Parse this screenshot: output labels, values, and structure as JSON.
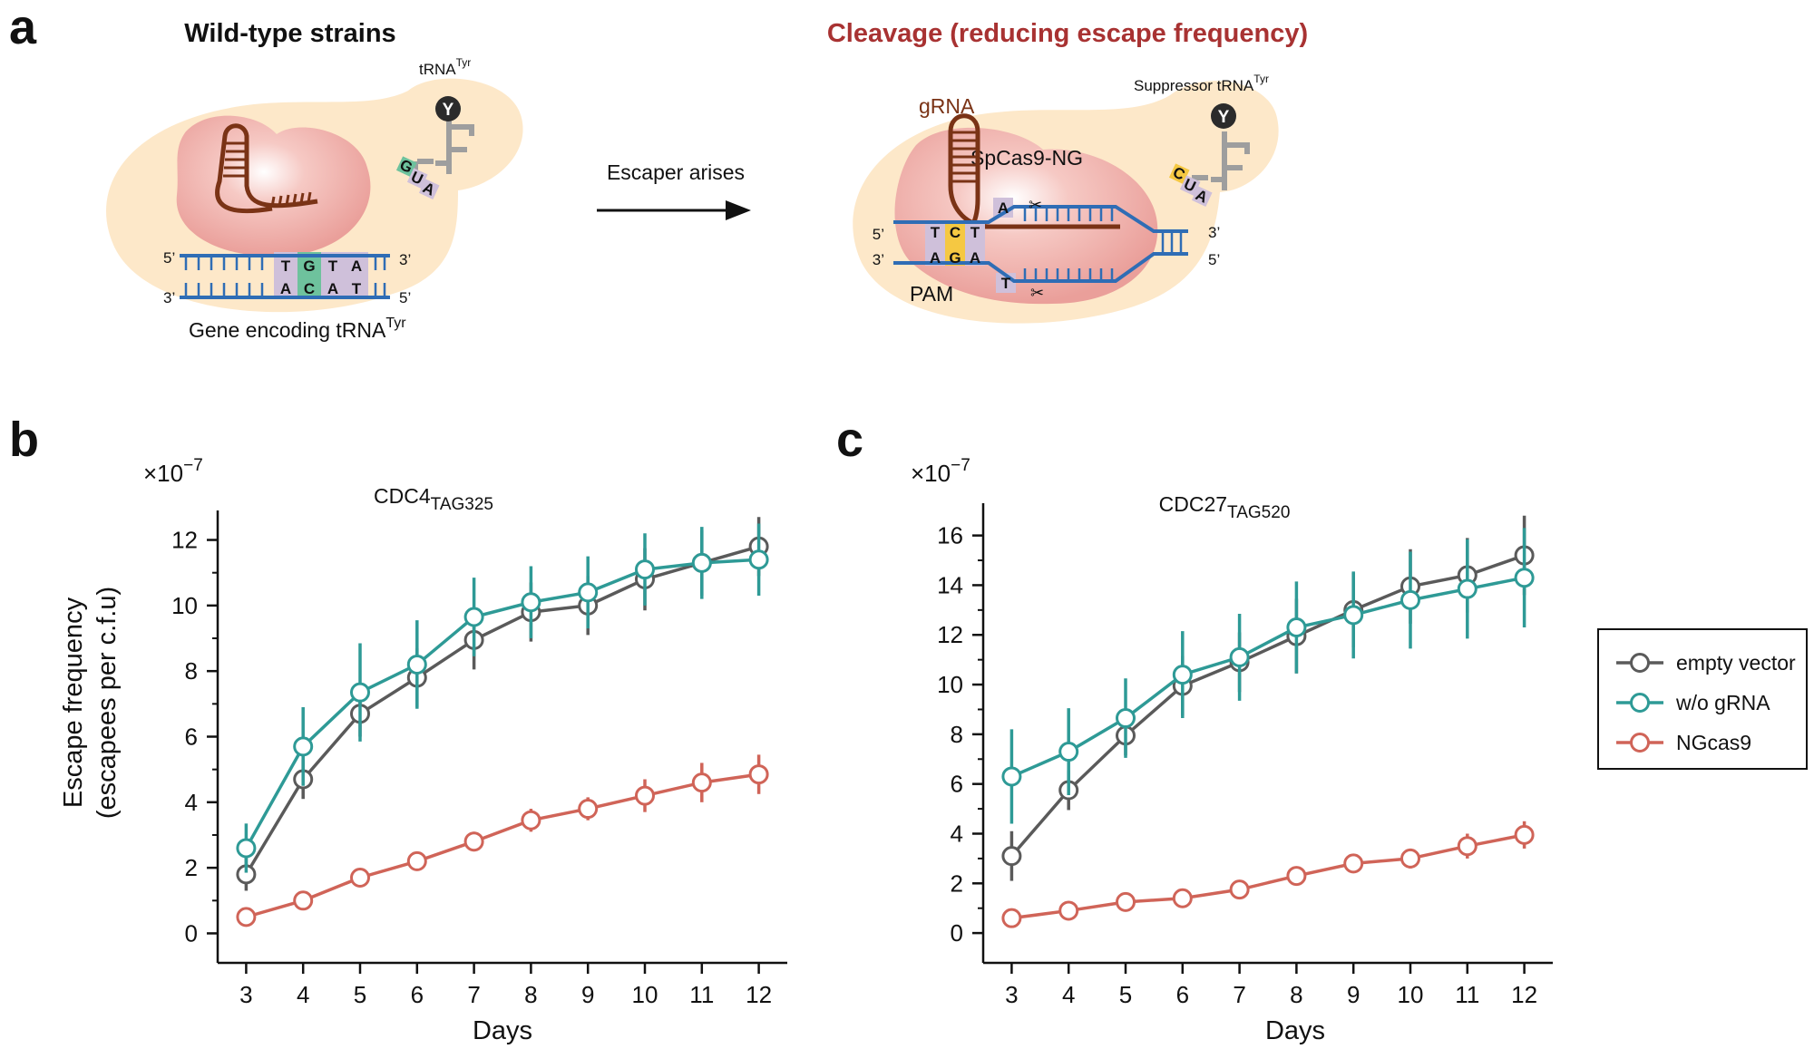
{
  "panels": {
    "a": "a",
    "b": "b",
    "c": "c"
  },
  "diagram": {
    "left_title": "Wild-type strains",
    "right_title": "Cleavage (reducing escape frequency)",
    "right_title_color": "#a83232",
    "arrow_label": "Escaper arises",
    "trna_main": "tRNA",
    "trna_sup": "Tyr",
    "suppressor_main": "Suppressor tRNA",
    "suppressor_sup": "Tyr",
    "gene_main": "Gene encoding tRNA",
    "gene_sup": "Tyr",
    "grna": "gRNA",
    "spcas9": "SpCas9-NG",
    "pam": "PAM",
    "amino_acid": "Y",
    "wt_anticodon": [
      "G",
      "U",
      "A"
    ],
    "sup_anticodon": [
      "C",
      "U",
      "A"
    ],
    "wt_top_strand": [
      "T",
      "G",
      "T",
      "A"
    ],
    "wt_bottom_strand": [
      "A",
      "C",
      "A",
      "T"
    ],
    "pam_top": [
      "T",
      "C",
      "T"
    ],
    "pam_bottom": [
      "A",
      "G",
      "A"
    ],
    "cut_top_base": "A",
    "cut_bottom_base": "T",
    "end_5": "5’",
    "end_3": "3’"
  },
  "chart_data": [
    {
      "type": "line",
      "title": "CDC4",
      "title_subscript": "TAG325",
      "xlabel": "Days",
      "ylabel": "Escape frequency",
      "ylabel2": "(escapees per c.f.u)",
      "multiplier_text": "×10",
      "multiplier_exp": "−7",
      "x": [
        3,
        4,
        5,
        6,
        7,
        8,
        9,
        10,
        11,
        12
      ],
      "xlim": [
        2.5,
        12.5
      ],
      "ylim": [
        -0.9,
        12.9
      ],
      "yticks": [
        0,
        2,
        4,
        6,
        8,
        10,
        12
      ],
      "series": [
        {
          "name": "empty vector",
          "color": "#5a5a5a",
          "values": [
            1.8,
            4.7,
            6.7,
            7.8,
            8.95,
            9.8,
            10.0,
            10.8,
            11.3,
            11.8
          ],
          "errors": [
            0.5,
            0.6,
            0.7,
            0.9,
            0.9,
            0.9,
            0.9,
            0.95,
            1.0,
            0.9
          ]
        },
        {
          "name": "w/o gRNA",
          "color": "#2e9a96",
          "values": [
            2.6,
            5.7,
            7.35,
            8.2,
            9.65,
            10.1,
            10.4,
            11.1,
            11.3,
            11.4
          ],
          "errors": [
            0.75,
            1.2,
            1.5,
            1.35,
            1.2,
            1.1,
            1.1,
            1.1,
            1.1,
            1.1
          ]
        },
        {
          "name": "NGcas9",
          "color": "#d06458",
          "values": [
            0.5,
            1.0,
            1.7,
            2.2,
            2.8,
            3.45,
            3.8,
            4.2,
            4.6,
            4.85
          ],
          "errors": [
            0.1,
            0.15,
            0.25,
            0.2,
            0.3,
            0.35,
            0.35,
            0.5,
            0.6,
            0.6
          ]
        }
      ]
    },
    {
      "type": "line",
      "title": "CDC27",
      "title_subscript": "TAG520",
      "xlabel": "Days",
      "ylabel": "",
      "multiplier_text": "×10",
      "multiplier_exp": "−7",
      "x": [
        3,
        4,
        5,
        6,
        7,
        8,
        9,
        10,
        11,
        12
      ],
      "xlim": [
        2.5,
        12.5
      ],
      "ylim": [
        -1.2,
        17.3
      ],
      "yticks": [
        0,
        2,
        4,
        6,
        8,
        10,
        12,
        14,
        16
      ],
      "series": [
        {
          "name": "empty vector",
          "color": "#5a5a5a",
          "values": [
            3.1,
            5.75,
            7.95,
            9.95,
            10.9,
            11.95,
            13.0,
            13.95,
            14.4,
            15.2
          ],
          "errors": [
            1.0,
            0.8,
            0.8,
            1.2,
            1.2,
            1.5,
            1.5,
            1.5,
            1.5,
            1.6
          ]
        },
        {
          "name": "w/o gRNA",
          "color": "#2e9a96",
          "values": [
            6.3,
            7.3,
            8.65,
            10.4,
            11.1,
            12.3,
            12.8,
            13.4,
            13.85,
            14.3
          ],
          "errors": [
            1.9,
            1.75,
            1.6,
            1.75,
            1.75,
            1.85,
            1.75,
            1.95,
            2.0,
            2.0
          ]
        },
        {
          "name": "NGcas9",
          "color": "#d06458",
          "values": [
            0.6,
            0.9,
            1.25,
            1.4,
            1.75,
            2.3,
            2.8,
            3.0,
            3.5,
            3.95
          ],
          "errors": [
            0.15,
            0.2,
            0.2,
            0.2,
            0.2,
            0.25,
            0.3,
            0.4,
            0.5,
            0.55
          ]
        }
      ]
    }
  ],
  "legend": [
    {
      "label": "empty vector",
      "color": "#5a5a5a"
    },
    {
      "label": "w/o gRNA",
      "color": "#2e9a96"
    },
    {
      "label": "NGcas9",
      "color": "#d06458"
    }
  ]
}
